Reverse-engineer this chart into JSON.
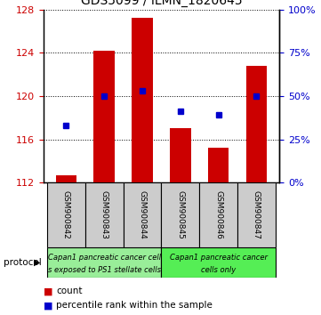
{
  "title": "GDS5099 / ILMN_1820645",
  "samples": [
    "GSM900842",
    "GSM900843",
    "GSM900844",
    "GSM900845",
    "GSM900846",
    "GSM900847"
  ],
  "bar_values": [
    112.7,
    124.2,
    127.2,
    117.0,
    115.2,
    122.8
  ],
  "pct_right": [
    33,
    50,
    53,
    41,
    39,
    50
  ],
  "ylim_left": [
    112,
    128
  ],
  "yticks_left": [
    112,
    116,
    120,
    124,
    128
  ],
  "yticks_right": [
    0,
    25,
    50,
    75,
    100
  ],
  "ylim_right": [
    0,
    100
  ],
  "bar_color": "#cc0000",
  "dot_color": "#0000cc",
  "bar_bottom": 112,
  "group1_label_top": "Capan1 pancreatic cancer cell",
  "group1_label_bot": "s exposed to PS1 stellate cells",
  "group2_label_top": "Capan1 pancreatic cancer",
  "group2_label_bot": "cells only",
  "group1_color": "#99ee99",
  "group2_color": "#55ee55",
  "legend_count_label": "count",
  "legend_percentile_label": "percentile rank within the sample",
  "protocol_label": "protocol",
  "tick_color_left": "#cc0000",
  "tick_color_right": "#0000cc",
  "label_bg": "#cccccc"
}
